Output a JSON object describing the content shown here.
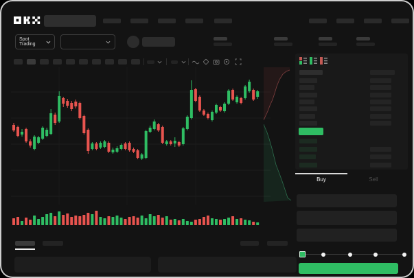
{
  "header": {
    "logo": "OKX",
    "nav_left_items": 5,
    "nav_right_items": 4
  },
  "market_bar": {
    "mode_label": "Spot Trading",
    "stat_groups": 4
  },
  "trade_panel": {
    "tabs": {
      "buy": "Buy",
      "sell": "Sell"
    },
    "slider": {
      "positions_pct": [
        0,
        21,
        47,
        72,
        100
      ],
      "selected_index": 0
    },
    "form_rows": 3
  },
  "orderbook": {
    "view_icons": [
      "orderbook-split-view-icon",
      "orderbook-bids-view-icon",
      "orderbook-asks-view-icon"
    ],
    "header": {
      "left_w": 34,
      "right_w": 36
    },
    "asks": [
      {
        "l": 26,
        "r": 31
      },
      {
        "l": 22,
        "r": 31
      },
      {
        "l": 26,
        "r": 31
      },
      {
        "l": 22,
        "r": 31
      },
      {
        "l": 26,
        "r": 31
      },
      {
        "l": 23,
        "r": 31
      },
      {
        "l": 26,
        "r": 31
      }
    ],
    "bids": [
      {
        "l": 26,
        "r": 0
      },
      {
        "l": 26,
        "r": 31
      },
      {
        "l": 24,
        "r": 31
      },
      {
        "l": 26,
        "r": 31
      }
    ]
  },
  "colors": {
    "green": "#2FBD63",
    "red": "#E8544F",
    "bid_tint": "#1C2B21",
    "bar_gray": "#262626",
    "window_bg": "#131313"
  },
  "chart_data": [
    {
      "type": "candlestick",
      "title": "",
      "xlabel": "",
      "ylabel": "",
      "units": "relative price units (axes unlabeled in screenshot)",
      "ylim": [
        55,
        185
      ],
      "grid": "faint horizontal + vertical lines",
      "legend": "none",
      "candles_ohlc": [
        [
          110,
          113,
          100,
          102
        ],
        [
          107,
          109,
          92,
          94
        ],
        [
          96,
          104,
          93,
          100
        ],
        [
          104,
          106,
          84,
          86
        ],
        [
          86,
          89,
          77,
          80
        ],
        [
          75,
          95,
          73,
          93
        ],
        [
          84,
          94,
          82,
          92
        ],
        [
          90,
          108,
          88,
          106
        ],
        [
          94,
          106,
          92,
          103
        ],
        [
          97,
          133,
          95,
          127
        ],
        [
          125,
          128,
          110,
          113
        ],
        [
          115,
          159,
          113,
          152
        ],
        [
          149,
          151,
          136,
          141
        ],
        [
          145,
          148,
          135,
          138
        ],
        [
          142,
          145,
          130,
          133
        ],
        [
          144,
          147,
          134,
          137
        ],
        [
          142,
          144,
          118,
          120
        ],
        [
          123,
          125,
          96,
          98
        ],
        [
          103,
          105,
          68,
          72
        ],
        [
          75,
          85,
          73,
          83
        ],
        [
          83,
          85,
          73,
          75
        ],
        [
          77,
          86,
          75,
          84
        ],
        [
          78,
          88,
          76,
          86
        ],
        [
          84,
          86,
          69,
          71
        ],
        [
          70,
          77,
          68,
          74
        ],
        [
          71,
          79,
          69,
          76
        ],
        [
          75,
          83,
          73,
          81
        ],
        [
          83,
          85,
          73,
          75
        ],
        [
          84,
          86,
          71,
          73
        ],
        [
          75,
          77,
          69,
          71
        ],
        [
          73,
          75,
          60,
          62
        ],
        [
          61,
          69,
          59,
          67
        ],
        [
          62,
          103,
          60,
          101
        ],
        [
          100,
          109,
          98,
          106
        ],
        [
          104,
          118,
          102,
          115
        ],
        [
          111,
          113,
          100,
          102
        ],
        [
          107,
          109,
          82,
          84
        ],
        [
          82,
          88,
          80,
          86
        ],
        [
          86,
          88,
          80,
          82
        ],
        [
          83,
          92,
          78,
          87
        ],
        [
          85,
          87,
          78,
          80
        ],
        [
          82,
          107,
          80,
          105
        ],
        [
          104,
          124,
          102,
          122
        ],
        [
          120,
          175,
          118,
          161
        ],
        [
          162,
          164,
          143,
          145
        ],
        [
          151,
          153,
          129,
          131
        ],
        [
          131,
          133,
          123,
          125
        ],
        [
          126,
          128,
          118,
          120
        ],
        [
          117,
          131,
          115,
          129
        ],
        [
          128,
          141,
          126,
          139
        ],
        [
          136,
          138,
          129,
          131
        ],
        [
          130,
          143,
          128,
          141
        ],
        [
          141,
          162,
          139,
          160
        ],
        [
          161,
          163,
          145,
          147
        ],
        [
          143,
          153,
          141,
          151
        ],
        [
          149,
          151,
          140,
          142
        ],
        [
          149,
          168,
          147,
          166
        ],
        [
          159,
          176,
          157,
          173
        ],
        [
          161,
          163,
          145,
          147
        ],
        [
          151,
          161,
          148,
          159
        ]
      ],
      "volume": [
        10,
        12,
        6,
        11,
        8,
        14,
        9,
        12,
        16,
        18,
        13,
        20,
        15,
        17,
        12,
        14,
        13,
        15,
        18,
        16,
        21,
        12,
        10,
        13,
        12,
        14,
        11,
        9,
        12,
        13,
        11,
        14,
        10,
        16,
        13,
        15,
        11,
        13,
        8,
        9,
        7,
        9,
        6,
        5,
        8,
        9,
        12,
        14,
        10,
        9,
        8,
        9,
        11,
        13,
        9,
        10,
        8,
        7,
        5,
        4
      ]
    },
    {
      "type": "area",
      "title": "vertical market depth",
      "asks_line": [
        [
          0,
          77
        ],
        [
          6,
          64
        ],
        [
          9,
          56
        ],
        [
          13,
          47
        ],
        [
          16,
          38
        ],
        [
          19,
          28
        ],
        [
          23,
          18
        ],
        [
          28,
          10
        ],
        [
          33,
          6
        ],
        [
          38,
          4
        ]
      ],
      "bids_line": [
        [
          0,
          83
        ],
        [
          5,
          95
        ],
        [
          8,
          104
        ],
        [
          12,
          118
        ],
        [
          15,
          130
        ],
        [
          18,
          142
        ],
        [
          23,
          155
        ],
        [
          27,
          166
        ],
        [
          31,
          178
        ],
        [
          35,
          190
        ],
        [
          40,
          194
        ]
      ]
    }
  ]
}
